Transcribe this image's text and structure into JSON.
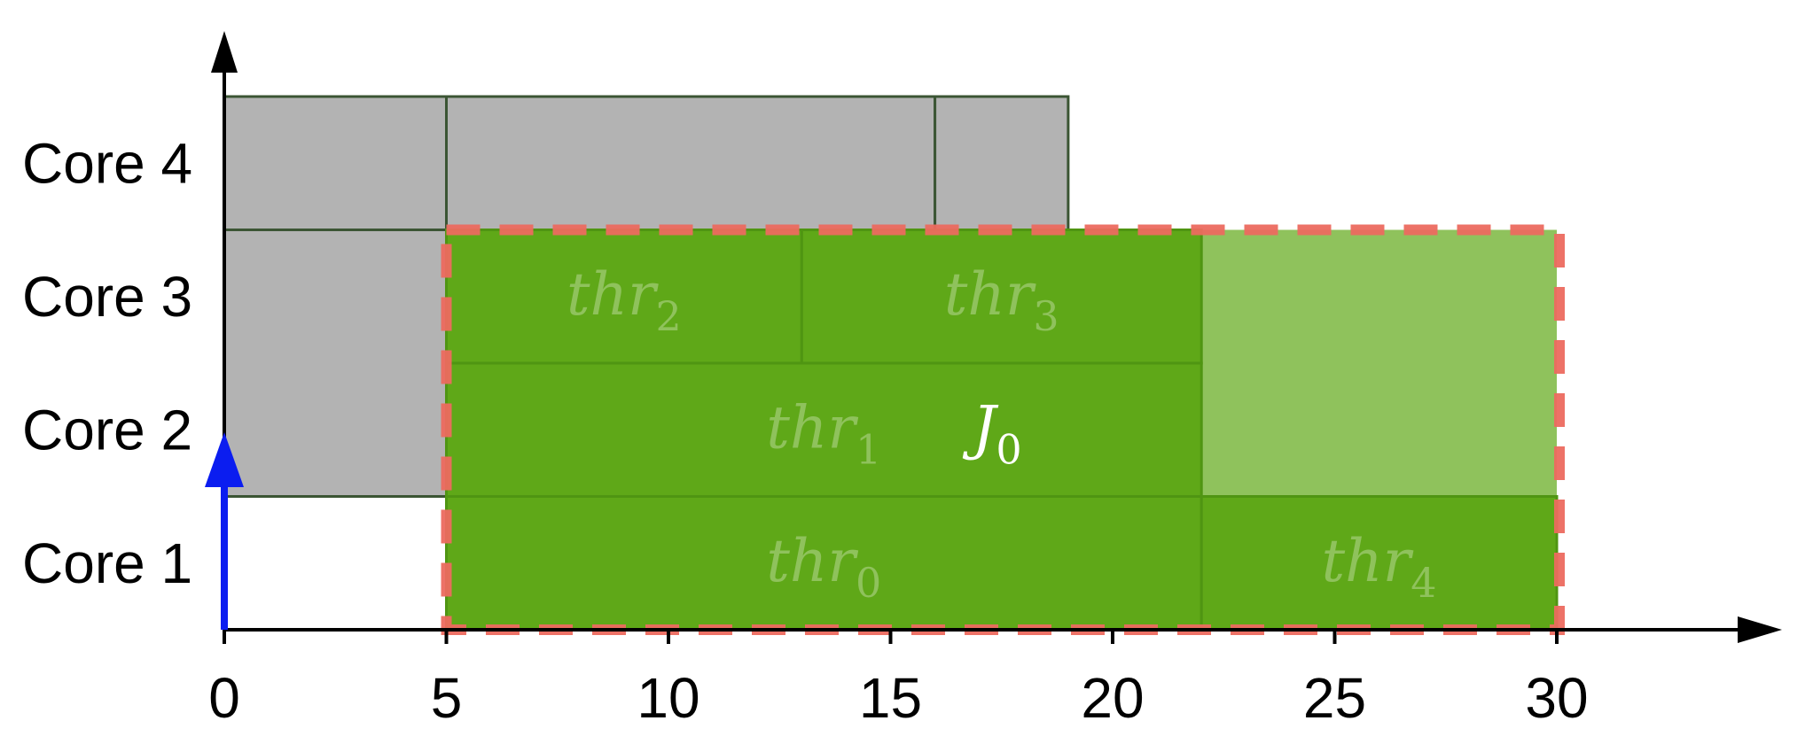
{
  "y_labels": [
    "Core 1",
    "Core 2",
    "Core 3",
    "Core 4"
  ],
  "x_ticks": [
    "0",
    "5",
    "10",
    "15",
    "20",
    "25",
    "30"
  ],
  "job": {
    "label": "J",
    "sub": "0",
    "start": 5,
    "end": 30
  },
  "threads": [
    {
      "name": "thr",
      "sub": "0",
      "core": 1,
      "start": 5,
      "end": 22
    },
    {
      "name": "thr",
      "sub": "1",
      "core": 2,
      "start": 5,
      "end": 22
    },
    {
      "name": "thr",
      "sub": "2",
      "core": 3,
      "start": 5,
      "end": 13
    },
    {
      "name": "thr",
      "sub": "3",
      "core": 3,
      "start": 13,
      "end": 22
    },
    {
      "name": "thr",
      "sub": "4",
      "core": 1,
      "start": 22,
      "end": 30
    }
  ],
  "idle_reserved": [
    {
      "core_from": 2,
      "core_to": 3,
      "start": 22,
      "end": 30
    }
  ],
  "background_blocks": [
    {
      "core_from": 2,
      "core_to": 3,
      "start": 0,
      "end": 5
    },
    {
      "core_from": 4,
      "core_to": 4,
      "start": 0,
      "end": 5
    },
    {
      "core_from": 4,
      "core_to": 4,
      "start": 5,
      "end": 16
    },
    {
      "core_from": 4,
      "core_to": 4,
      "start": 16,
      "end": 19
    }
  ],
  "release_arrow": {
    "at": 0
  },
  "colors": {
    "thread_fill": "#5fa818",
    "thread_stroke": "#4f9512",
    "idle_fill": "#8fc25c",
    "background_fill": "#b3b3b3",
    "background_stroke": "#3b5534",
    "job_border": "#ec6a5f",
    "release_arrow": "#0b1df0",
    "axis": "#000000"
  }
}
